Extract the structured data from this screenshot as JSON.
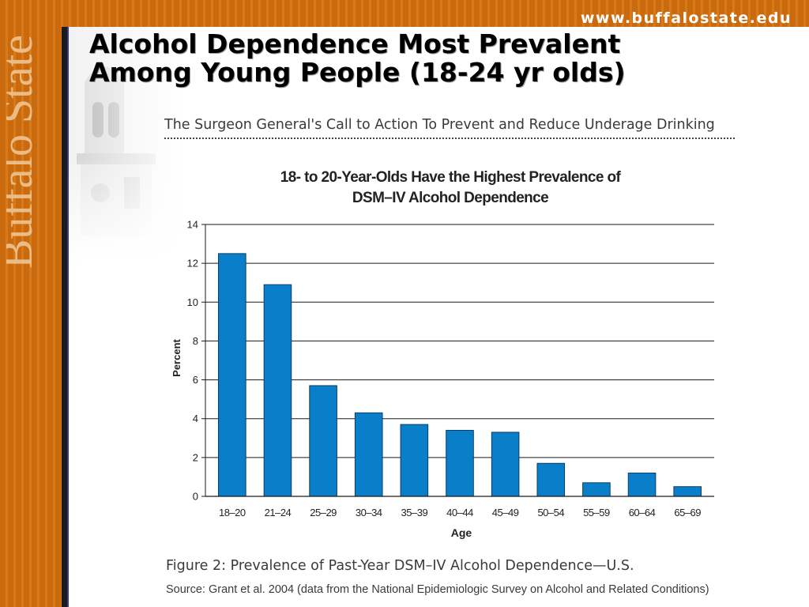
{
  "header": {
    "site_url": "www.buffalostate.edu",
    "logo_text": "Buffalo State"
  },
  "slide": {
    "title_line1": "Alcohol Dependence Most Prevalent",
    "title_line2": "Among Young People (18-24 yr olds)",
    "subtitle": "The Surgeon General's Call to Action To Prevent and Reduce Underage Drinking",
    "figure_caption": "Figure 2: Prevalence of Past-Year DSM–IV Alcohol Dependence—U.S.",
    "source": "Source: Grant et al. 2004 (data from the National Epidemiologic Survey on Alcohol and Related Conditions)"
  },
  "colors": {
    "orange": "#c96a0e",
    "bar": "#0a7fc9",
    "bar_edge": "#0a3c66"
  },
  "chart_data": {
    "type": "bar",
    "title_line1": "18- to 20-Year-Olds Have the Highest Prevalence of",
    "title_line2": "DSM–IV Alcohol Dependence",
    "xlabel": "Age",
    "ylabel": "Percent",
    "categories": [
      "18–20",
      "21–24",
      "25–29",
      "30–34",
      "35–39",
      "40–44",
      "45–49",
      "50–54",
      "55–59",
      "60–64",
      "65–69"
    ],
    "values": [
      12.5,
      10.9,
      5.7,
      4.3,
      3.7,
      3.4,
      3.3,
      1.7,
      0.7,
      1.2,
      0.5
    ],
    "ylim": [
      0,
      14
    ],
    "yticks": [
      0,
      2,
      4,
      6,
      8,
      10,
      12,
      14
    ],
    "grid": true,
    "legend": "none"
  }
}
